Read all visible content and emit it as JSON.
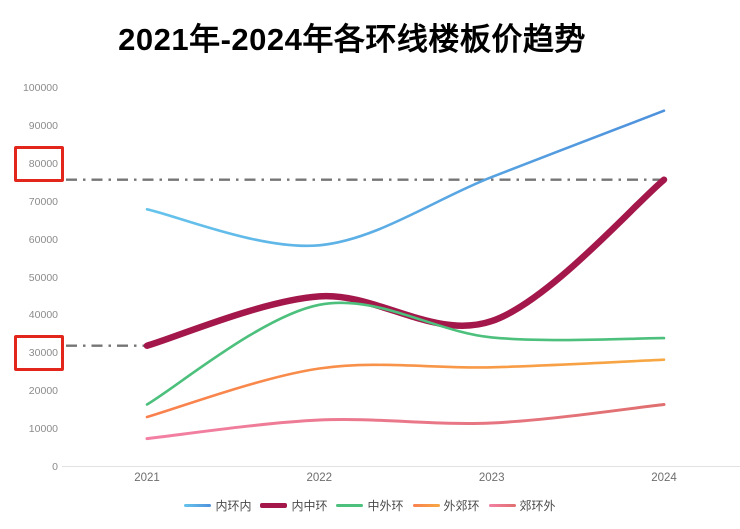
{
  "title": "2021年-2024年各环线楼板价趋势",
  "chart_data": {
    "type": "line",
    "x": [
      "2021",
      "2022",
      "2023",
      "2024"
    ],
    "series": [
      {
        "name": "内环内",
        "values": [
          68000,
          58500,
          76500,
          94000
        ],
        "color": "#66C4EC",
        "color2": "#4E91DC",
        "width": 2.6
      },
      {
        "name": "内中环",
        "values": [
          32000,
          45000,
          38500,
          75800
        ],
        "color": "#A4174A",
        "width": 6.5
      },
      {
        "name": "中外环",
        "values": [
          16500,
          42800,
          34200,
          34000
        ],
        "color": "#4CC07C",
        "width": 2.6
      },
      {
        "name": "外郊环",
        "values": [
          13200,
          26000,
          26300,
          28300
        ],
        "color": "#F9804E",
        "color2": "#F7A843",
        "width": 2.6
      },
      {
        "name": "郊环外",
        "values": [
          7500,
          12400,
          11600,
          16500
        ],
        "color": "#F380A4",
        "color2": "#E06F6F",
        "width": 3
      }
    ],
    "y_ticks": [
      0,
      10000,
      20000,
      30000,
      40000,
      50000,
      60000,
      70000,
      80000,
      90000,
      100000
    ],
    "ylim": [
      0,
      100000
    ],
    "grid": false,
    "legend_position": "bottom",
    "reference_lines": [
      {
        "value": 75800,
        "span": "full",
        "style": "dash-dot",
        "color": "#757575"
      },
      {
        "value": 32000,
        "span": "to-first-point",
        "style": "dash-dot",
        "color": "#757575"
      }
    ],
    "highlighted_y_labels": [
      80000,
      30000
    ],
    "highlight_color": "#E3261B"
  }
}
